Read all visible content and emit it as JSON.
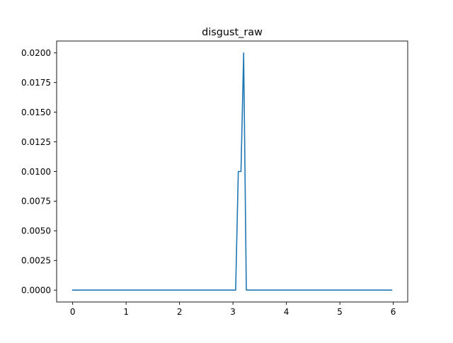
{
  "chart_data": {
    "type": "line",
    "title": "disgust_raw",
    "xlabel": "",
    "ylabel": "",
    "xlim": [
      -0.3,
      6.27
    ],
    "ylim": [
      -0.001,
      0.021
    ],
    "x_ticks": [
      0,
      1,
      2,
      3,
      4,
      5,
      6
    ],
    "x_tick_labels": [
      "0",
      "1",
      "2",
      "3",
      "4",
      "5",
      "6"
    ],
    "y_ticks": [
      0.0,
      0.0025,
      0.005,
      0.0075,
      0.01,
      0.0125,
      0.015,
      0.0175,
      0.02
    ],
    "y_tick_labels": [
      "0.0000",
      "0.0025",
      "0.0050",
      "0.0075",
      "0.0100",
      "0.0125",
      "0.0150",
      "0.0175",
      "0.0200"
    ],
    "grid": false,
    "legend": "none",
    "series": [
      {
        "color": "#1f77b4",
        "x": [
          0.0,
          3.05,
          3.1,
          3.15,
          3.2,
          3.25,
          5.97
        ],
        "y": [
          0.0,
          0.0,
          0.01,
          0.01,
          0.02,
          0.0,
          0.0
        ]
      }
    ]
  }
}
